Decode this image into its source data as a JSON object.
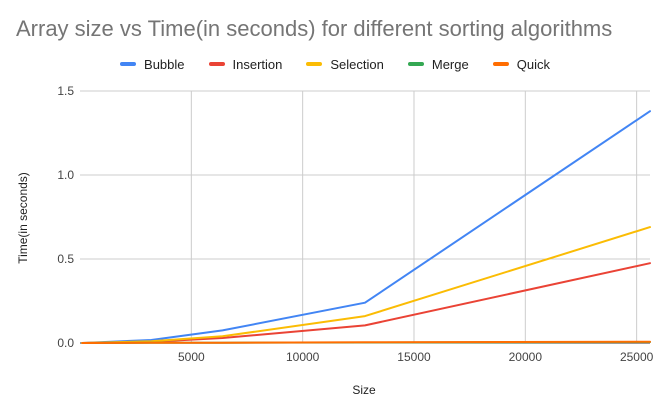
{
  "chart_data": {
    "type": "line",
    "title": "Array size vs Time(in seconds) for different sorting algorithms",
    "xlabel": "Size",
    "ylabel": "Time(in seconds)",
    "x": [
      100,
      3200,
      6400,
      12800,
      25600
    ],
    "xlim": [
      0,
      25600
    ],
    "ylim": [
      0,
      1.5
    ],
    "x_ticks": [
      5000,
      10000,
      15000,
      20000,
      25000
    ],
    "x_tick_labels": [
      "5000",
      "10000",
      "15000",
      "20000",
      "25000"
    ],
    "y_ticks": [
      0,
      0.5,
      1,
      1.5
    ],
    "y_tick_labels": [
      "0.0",
      "0.5",
      "1.0",
      "1.5"
    ],
    "grid": true,
    "legend_position": "top",
    "series": [
      {
        "name": "Bubble",
        "color": "#4285f4",
        "values": [
          0,
          0.018,
          0.075,
          0.24,
          1.38
        ]
      },
      {
        "name": "Insertion",
        "color": "#ea4335",
        "values": [
          0,
          0.007,
          0.03,
          0.105,
          0.475
        ]
      },
      {
        "name": "Selection",
        "color": "#fbbc04",
        "values": [
          0,
          0.01,
          0.04,
          0.16,
          0.69
        ]
      },
      {
        "name": "Merge",
        "color": "#34a853",
        "values": [
          0,
          0.001,
          0.002,
          0.003,
          0.006
        ]
      },
      {
        "name": "Quick",
        "color": "#ff6d01",
        "values": [
          0,
          0.001,
          0.002,
          0.004,
          0.008
        ]
      }
    ]
  }
}
